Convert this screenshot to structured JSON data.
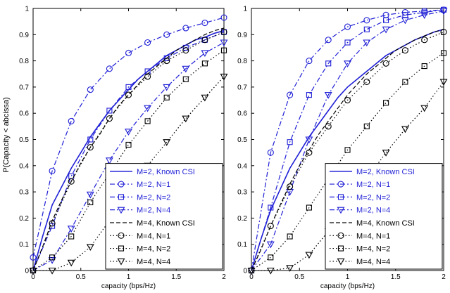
{
  "figure": {
    "ylabel": "P(Capacity < abcissa)"
  },
  "chart_data": [
    {
      "type": "line",
      "xlabel": "capacity (bps/Hz)",
      "ylabel": "P(Capacity < abcissa)",
      "xlim": [
        0,
        2
      ],
      "ylim": [
        0,
        1
      ],
      "x_ticks": [
        "0",
        "0.5",
        "1",
        "1.5",
        "2"
      ],
      "y_ticks": [
        "0",
        "0.1",
        "0.2",
        "0.3",
        "0.4",
        "0.5",
        "0.6",
        "0.7",
        "0.8",
        "0.9",
        "1"
      ],
      "grid": false,
      "legend_position": "bottom-right",
      "series": [
        {
          "name": "M=2, Known CSI",
          "style": "solid",
          "marker": "none",
          "x": [
            0,
            0.1,
            0.2,
            0.3,
            0.4,
            0.5,
            0.6,
            0.7,
            0.8,
            0.9,
            1.0,
            1.1,
            1.2,
            1.3,
            1.4,
            1.5,
            1.6,
            1.7,
            1.8,
            1.9,
            2.0
          ],
          "y": [
            0.0,
            0.13,
            0.25,
            0.32,
            0.39,
            0.45,
            0.51,
            0.56,
            0.61,
            0.65,
            0.69,
            0.73,
            0.76,
            0.79,
            0.82,
            0.84,
            0.86,
            0.88,
            0.89,
            0.905,
            0.915
          ]
        },
        {
          "name": "M=2, N=1",
          "style": "dashdot",
          "marker": "circle",
          "x": [
            0,
            0.2,
            0.4,
            0.6,
            0.8,
            1.0,
            1.2,
            1.4,
            1.6,
            1.8,
            2.0
          ],
          "y": [
            0.05,
            0.38,
            0.57,
            0.69,
            0.77,
            0.83,
            0.87,
            0.9,
            0.925,
            0.945,
            0.965
          ]
        },
        {
          "name": "M=2, N=2",
          "style": "dashdot",
          "marker": "square",
          "x": [
            0,
            0.2,
            0.4,
            0.6,
            0.8,
            1.0,
            1.2,
            1.4,
            1.6,
            1.8,
            2.0
          ],
          "y": [
            0.0,
            0.17,
            0.36,
            0.5,
            0.61,
            0.7,
            0.76,
            0.81,
            0.85,
            0.88,
            0.91
          ]
        },
        {
          "name": "M=2, N=4",
          "style": "dashdot",
          "marker": "triangle-down",
          "x": [
            0,
            0.2,
            0.4,
            0.6,
            0.8,
            1.0,
            1.2,
            1.4,
            1.6,
            1.8,
            2.0
          ],
          "y": [
            0.0,
            0.04,
            0.16,
            0.29,
            0.42,
            0.53,
            0.62,
            0.7,
            0.77,
            0.83,
            0.87
          ]
        },
        {
          "name": "M=4, Known CSI",
          "style": "dashed",
          "marker": "none",
          "x": [
            0,
            0.1,
            0.2,
            0.3,
            0.4,
            0.5,
            0.6,
            0.7,
            0.8,
            0.9,
            1.0,
            1.1,
            1.2,
            1.3,
            1.4,
            1.5,
            1.6,
            1.7,
            1.8,
            1.9,
            2.0
          ],
          "y": [
            0.0,
            0.09,
            0.19,
            0.27,
            0.34,
            0.41,
            0.47,
            0.52,
            0.58,
            0.63,
            0.67,
            0.71,
            0.75,
            0.78,
            0.81,
            0.84,
            0.86,
            0.88,
            0.9,
            0.915,
            0.925
          ]
        },
        {
          "name": "M=4, N=1",
          "style": "dotted",
          "marker": "circle",
          "x": [
            0,
            0.2,
            0.4,
            0.6,
            0.8,
            1.0,
            1.2,
            1.4,
            1.6,
            1.8,
            2.0
          ],
          "y": [
            0.0,
            0.18,
            0.34,
            0.47,
            0.58,
            0.67,
            0.74,
            0.8,
            0.84,
            0.88,
            0.91
          ]
        },
        {
          "name": "M=4, N=2",
          "style": "dotted",
          "marker": "square",
          "x": [
            0,
            0.2,
            0.4,
            0.6,
            0.8,
            1.0,
            1.2,
            1.4,
            1.6,
            1.8,
            2.0
          ],
          "y": [
            0.0,
            0.05,
            0.13,
            0.26,
            0.37,
            0.48,
            0.57,
            0.66,
            0.73,
            0.79,
            0.84
          ]
        },
        {
          "name": "M=4, N=4",
          "style": "dotted",
          "marker": "triangle-down",
          "x": [
            0,
            0.2,
            0.4,
            0.6,
            0.8,
            1.0,
            1.2,
            1.4,
            1.6,
            1.8,
            2.0
          ],
          "y": [
            0.0,
            0.0,
            0.03,
            0.09,
            0.19,
            0.3,
            0.4,
            0.49,
            0.58,
            0.66,
            0.74
          ]
        }
      ]
    },
    {
      "type": "line",
      "xlabel": "capacity (bps/Hz)",
      "ylabel": "",
      "xlim": [
        0,
        2
      ],
      "ylim": [
        0,
        1
      ],
      "x_ticks": [
        "0",
        "0.5",
        "1",
        "1.5",
        "2"
      ],
      "y_ticks": [
        "0",
        "0.1",
        "0.2",
        "0.3",
        "0.4",
        "0.5",
        "0.6",
        "0.7",
        "0.8",
        "0.9",
        "1"
      ],
      "grid": false,
      "legend_position": "bottom-right",
      "series": [
        {
          "name": "M=2, Known CSI",
          "style": "solid",
          "marker": "none",
          "x": [
            0,
            0.1,
            0.2,
            0.3,
            0.4,
            0.5,
            0.6,
            0.7,
            0.8,
            0.9,
            1.0,
            1.1,
            1.2,
            1.3,
            1.4,
            1.5,
            1.6,
            1.7,
            1.8,
            1.9,
            2.0
          ],
          "y": [
            0.0,
            0.12,
            0.23,
            0.31,
            0.39,
            0.45,
            0.51,
            0.56,
            0.61,
            0.66,
            0.7,
            0.73,
            0.76,
            0.79,
            0.82,
            0.84,
            0.86,
            0.88,
            0.895,
            0.91,
            0.92
          ]
        },
        {
          "name": "M=2, N=1",
          "style": "dashdot",
          "marker": "circle",
          "x": [
            0,
            0.2,
            0.4,
            0.6,
            0.8,
            1.0,
            1.2,
            1.4,
            1.6,
            1.8,
            2.0
          ],
          "y": [
            0.0,
            0.45,
            0.67,
            0.8,
            0.88,
            0.93,
            0.955,
            0.975,
            0.985,
            0.99,
            0.995
          ]
        },
        {
          "name": "M=2, N=2",
          "style": "dashdot",
          "marker": "square",
          "x": [
            0,
            0.2,
            0.4,
            0.6,
            0.8,
            1.0,
            1.2,
            1.4,
            1.6,
            1.8,
            2.0
          ],
          "y": [
            0.0,
            0.24,
            0.49,
            0.67,
            0.79,
            0.87,
            0.92,
            0.955,
            0.975,
            0.985,
            0.995
          ]
        },
        {
          "name": "M=2, N=4",
          "style": "dashdot",
          "marker": "triangle-down",
          "x": [
            0,
            0.2,
            0.4,
            0.6,
            0.8,
            1.0,
            1.2,
            1.4,
            1.6,
            1.8,
            2.0
          ],
          "y": [
            0.0,
            0.1,
            0.3,
            0.5,
            0.67,
            0.79,
            0.87,
            0.92,
            0.955,
            0.975,
            0.99
          ]
        },
        {
          "name": "M=4, Known CSI",
          "style": "dashed",
          "marker": "none",
          "x": [
            0,
            0.1,
            0.2,
            0.3,
            0.4,
            0.5,
            0.6,
            0.7,
            0.8,
            0.9,
            1.0,
            1.1,
            1.2,
            1.3,
            1.4,
            1.5,
            1.6,
            1.7,
            1.8,
            1.9,
            2.0
          ],
          "y": [
            0.0,
            0.08,
            0.17,
            0.25,
            0.33,
            0.4,
            0.46,
            0.52,
            0.57,
            0.62,
            0.67,
            0.71,
            0.75,
            0.78,
            0.81,
            0.84,
            0.86,
            0.88,
            0.895,
            0.91,
            0.92
          ]
        },
        {
          "name": "M=4, N=1",
          "style": "dotted",
          "marker": "circle",
          "x": [
            0,
            0.2,
            0.4,
            0.6,
            0.8,
            1.0,
            1.2,
            1.4,
            1.6,
            1.8,
            2.0
          ],
          "y": [
            0.0,
            0.17,
            0.32,
            0.45,
            0.55,
            0.65,
            0.72,
            0.79,
            0.84,
            0.88,
            0.91
          ]
        },
        {
          "name": "M=4, N=2",
          "style": "dotted",
          "marker": "square",
          "x": [
            0,
            0.2,
            0.4,
            0.6,
            0.8,
            1.0,
            1.2,
            1.4,
            1.6,
            1.8,
            2.0
          ],
          "y": [
            0.0,
            0.05,
            0.13,
            0.24,
            0.35,
            0.46,
            0.55,
            0.64,
            0.72,
            0.78,
            0.83
          ]
        },
        {
          "name": "M=4, N=4",
          "style": "dotted",
          "marker": "triangle-down",
          "x": [
            0,
            0.2,
            0.4,
            0.6,
            0.8,
            1.0,
            1.2,
            1.4,
            1.6,
            1.8,
            2.0
          ],
          "y": [
            0.0,
            0.0,
            0.01,
            0.06,
            0.15,
            0.25,
            0.35,
            0.45,
            0.54,
            0.62,
            0.72
          ]
        }
      ]
    }
  ]
}
